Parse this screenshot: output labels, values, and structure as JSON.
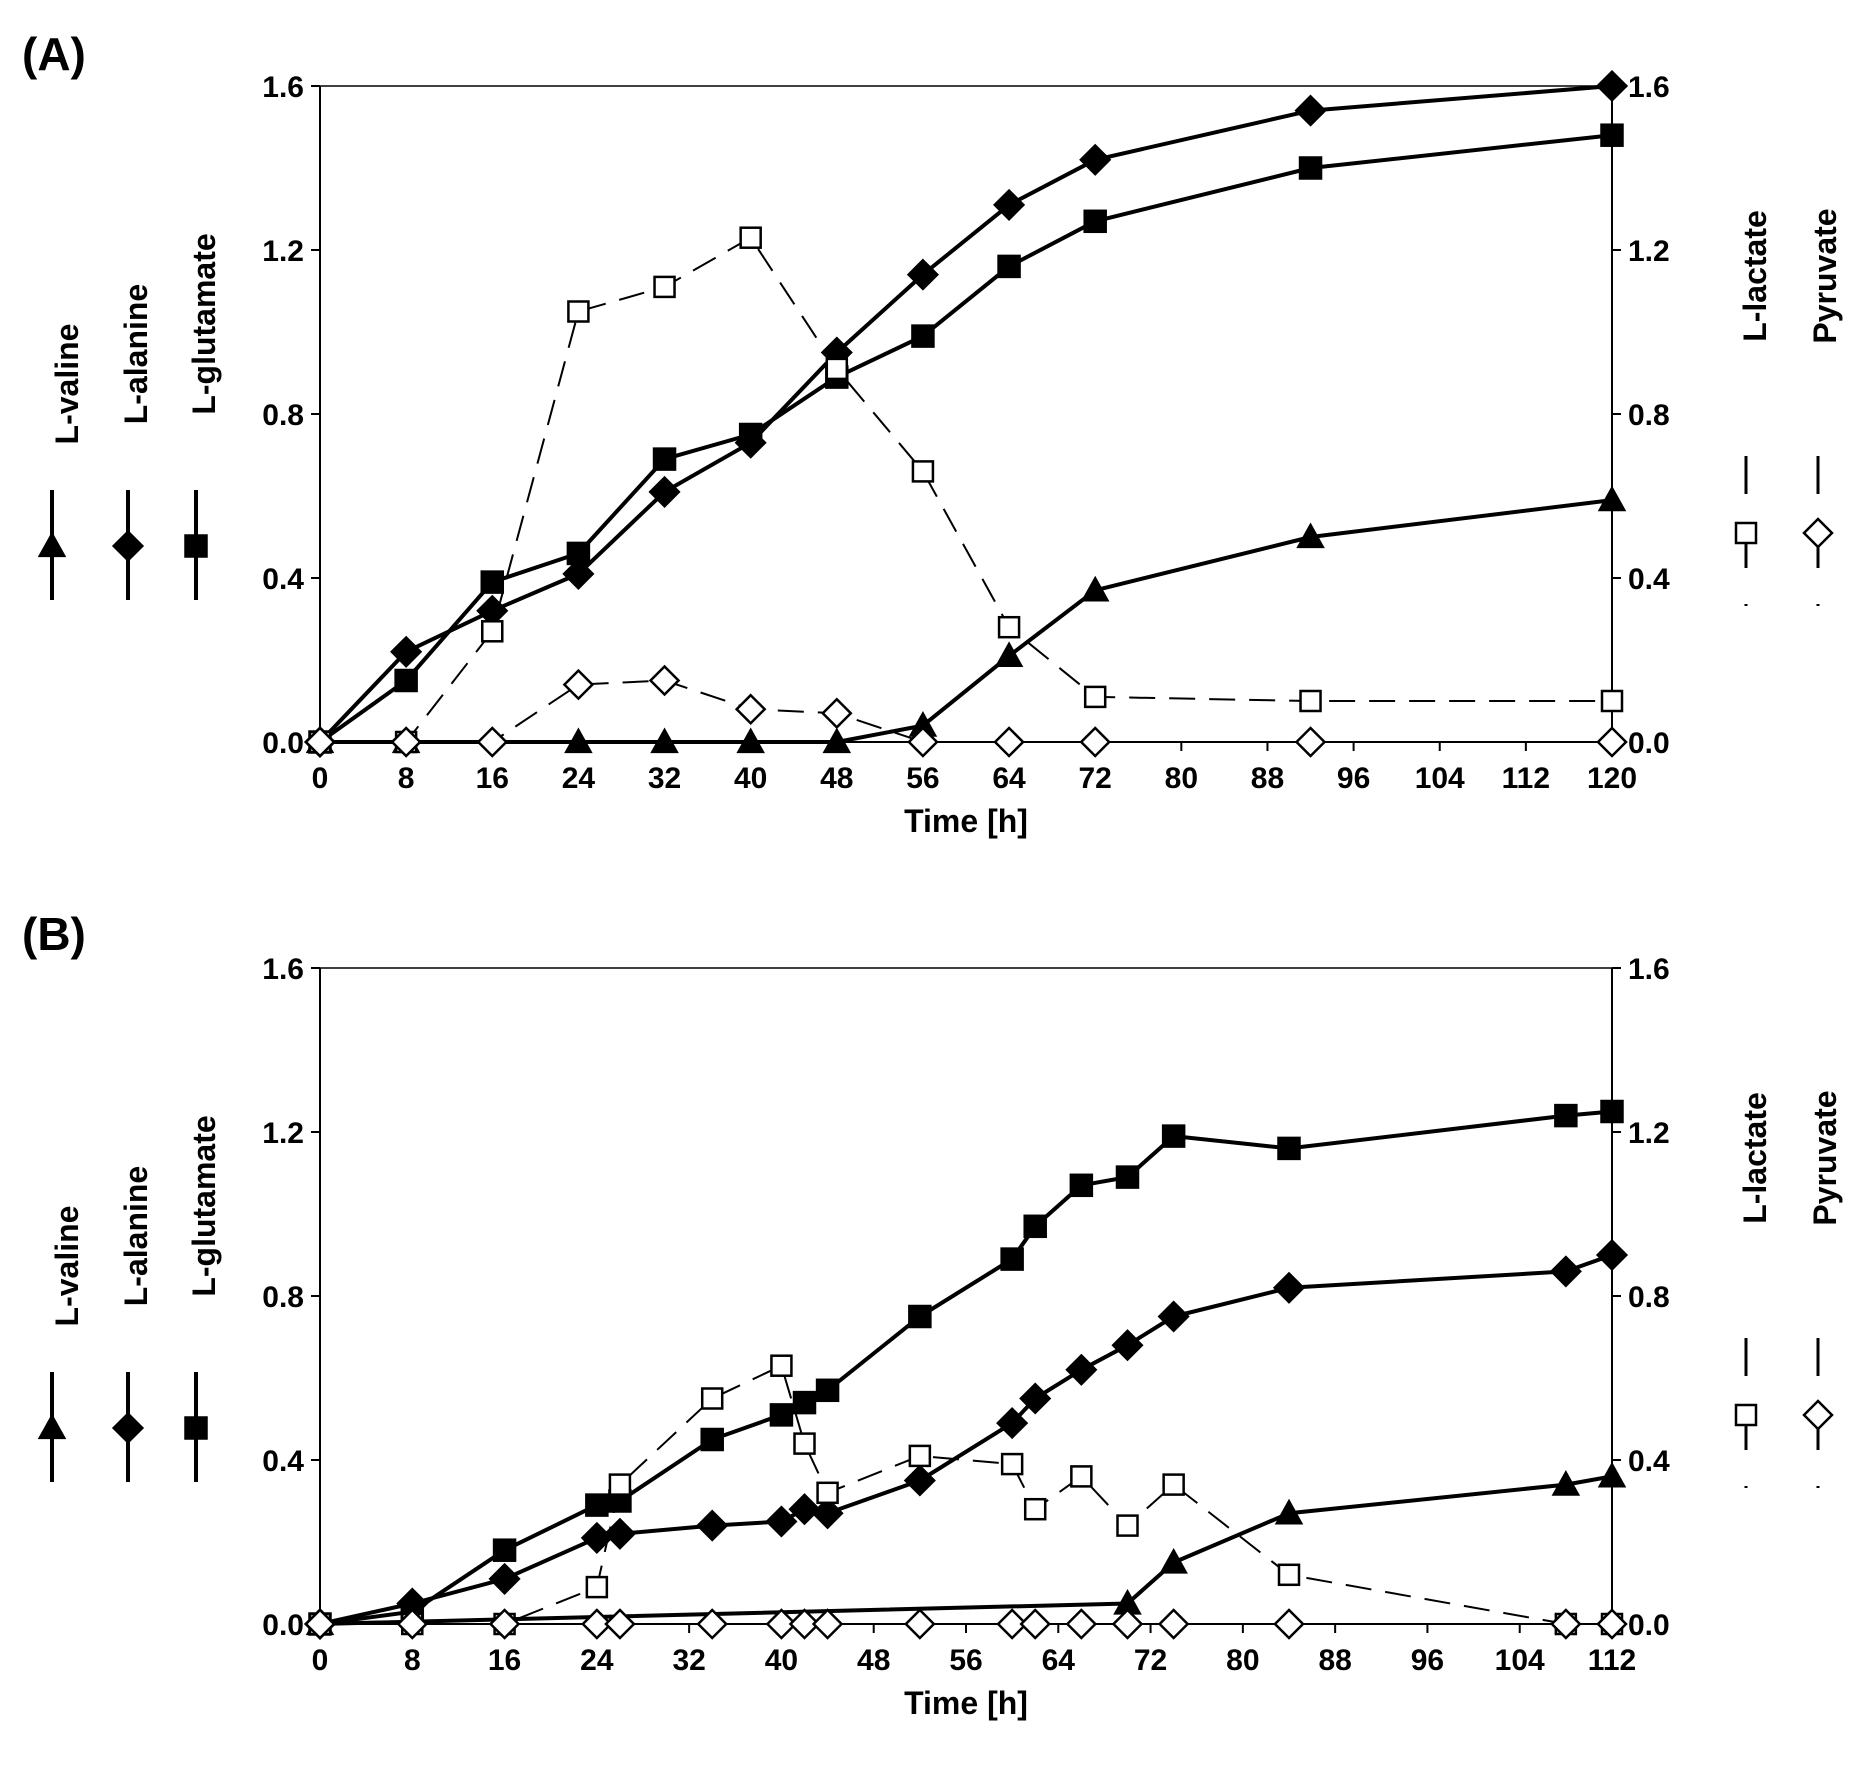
{
  "chart_data": [
    {
      "panel": "(A)",
      "type": "line",
      "xlabel": "Time [h]",
      "xlim": [
        0,
        120
      ],
      "xticks": [
        "0",
        "8",
        "16",
        "24",
        "32",
        "40",
        "48",
        "56",
        "64",
        "72",
        "80",
        "88",
        "96",
        "104",
        "112",
        "120"
      ],
      "ylim": [
        0,
        1.6
      ],
      "yticks": [
        "0.0",
        "0.4",
        "0.8",
        "1.2",
        "1.6"
      ],
      "y2ticks": [
        "0.0",
        "0.4",
        "0.8",
        "1.2",
        "1.6"
      ],
      "series": [
        {
          "name": "L-valine",
          "axis": "left",
          "marker": "triangle",
          "filled": true,
          "dashed": false,
          "x": [
            0,
            8,
            24,
            32,
            40,
            48,
            56,
            64,
            72,
            92,
            120
          ],
          "y": [
            0,
            0,
            0,
            0,
            0,
            0,
            0.04,
            0.21,
            0.37,
            0.5,
            0.59
          ]
        },
        {
          "name": "L-alanine",
          "axis": "left",
          "marker": "diamond",
          "filled": true,
          "dashed": false,
          "x": [
            0,
            8,
            16,
            24,
            32,
            40,
            48,
            56,
            64,
            72,
            92,
            120
          ],
          "y": [
            0,
            0.22,
            0.32,
            0.41,
            0.61,
            0.73,
            0.95,
            1.14,
            1.31,
            1.42,
            1.54,
            1.6
          ]
        },
        {
          "name": "L-glutamate",
          "axis": "left",
          "marker": "square",
          "filled": true,
          "dashed": false,
          "x": [
            0,
            8,
            16,
            24,
            32,
            40,
            48,
            56,
            64,
            72,
            92,
            120
          ],
          "y": [
            0,
            0.15,
            0.39,
            0.46,
            0.69,
            0.75,
            0.89,
            0.99,
            1.16,
            1.27,
            1.4,
            1.48
          ]
        },
        {
          "name": "L-lactate",
          "axis": "right",
          "marker": "square",
          "filled": false,
          "dashed": true,
          "x": [
            0,
            8,
            16,
            24,
            32,
            40,
            48,
            56,
            64,
            72,
            92,
            120
          ],
          "y": [
            0,
            0,
            0.27,
            1.05,
            1.11,
            1.23,
            0.91,
            0.66,
            0.28,
            0.11,
            0.1,
            0.1
          ]
        },
        {
          "name": "Pyruvate",
          "axis": "right",
          "marker": "diamond",
          "filled": false,
          "dashed": true,
          "x": [
            0,
            8,
            16,
            24,
            32,
            40,
            48,
            56,
            64,
            72,
            92,
            120
          ],
          "y": [
            0,
            0,
            0,
            0.14,
            0.15,
            0.08,
            0.07,
            0,
            0,
            0,
            0,
            0
          ]
        }
      ]
    },
    {
      "panel": "(B)",
      "type": "line",
      "xlabel": "Time [h]",
      "xlim": [
        0,
        112
      ],
      "xticks": [
        "0",
        "8",
        "16",
        "24",
        "32",
        "40",
        "48",
        "56",
        "64",
        "72",
        "80",
        "88",
        "96",
        "104",
        "112"
      ],
      "ylim": [
        0,
        1.6
      ],
      "yticks": [
        "0.0",
        "0.4",
        "0.8",
        "1.2",
        "1.6"
      ],
      "y2ticks": [
        "0.0",
        "0.4",
        "0.8",
        "1.2",
        "1.6"
      ],
      "series": [
        {
          "name": "L-valine",
          "axis": "left",
          "marker": "triangle",
          "filled": true,
          "dashed": false,
          "x": [
            0,
            70,
            74,
            84,
            108,
            112
          ],
          "y": [
            0,
            0.05,
            0.15,
            0.27,
            0.34,
            0.36
          ]
        },
        {
          "name": "L-alanine",
          "axis": "left",
          "marker": "diamond",
          "filled": true,
          "dashed": false,
          "x": [
            0,
            8,
            16,
            24,
            26,
            34,
            40,
            42,
            44,
            52,
            60,
            62,
            66,
            70,
            74,
            84,
            108,
            112
          ],
          "y": [
            0,
            0.05,
            0.11,
            0.21,
            0.22,
            0.24,
            0.25,
            0.28,
            0.27,
            0.35,
            0.49,
            0.55,
            0.62,
            0.68,
            0.75,
            0.82,
            0.86,
            0.9
          ]
        },
        {
          "name": "L-glutamate",
          "axis": "left",
          "marker": "square",
          "filled": true,
          "dashed": false,
          "x": [
            0,
            8,
            16,
            24,
            26,
            34,
            40,
            42,
            44,
            52,
            60,
            62,
            66,
            70,
            74,
            84,
            108,
            112
          ],
          "y": [
            0,
            0.03,
            0.18,
            0.29,
            0.3,
            0.45,
            0.51,
            0.54,
            0.57,
            0.75,
            0.89,
            0.97,
            1.07,
            1.09,
            1.19,
            1.16,
            1.24,
            1.25
          ]
        },
        {
          "name": "L-lactate",
          "axis": "right",
          "marker": "square",
          "filled": false,
          "dashed": true,
          "x": [
            0,
            8,
            16,
            24,
            26,
            34,
            40,
            42,
            44,
            52,
            60,
            62,
            66,
            70,
            74,
            84,
            108,
            112
          ],
          "y": [
            0,
            0,
            0,
            0.09,
            0.34,
            0.55,
            0.63,
            0.44,
            0.32,
            0.41,
            0.39,
            0.28,
            0.36,
            0.24,
            0.34,
            0.12,
            0,
            0
          ]
        },
        {
          "name": "Pyruvate",
          "axis": "right",
          "marker": "diamond",
          "filled": false,
          "dashed": true,
          "x": [
            0,
            8,
            16,
            24,
            26,
            34,
            40,
            42,
            44,
            52,
            60,
            62,
            66,
            70,
            74,
            84,
            108,
            112
          ],
          "y": [
            0,
            0,
            0,
            0,
            0,
            0,
            0,
            0,
            0,
            0,
            0,
            0,
            0,
            0,
            0,
            0,
            0,
            0
          ]
        }
      ]
    }
  ]
}
